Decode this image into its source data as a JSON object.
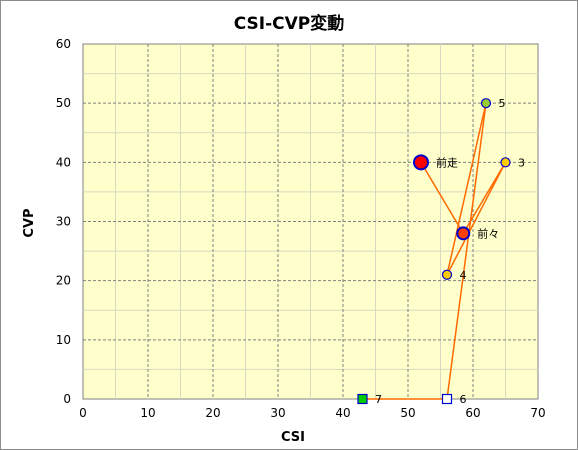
{
  "chart_data": {
    "type": "scatter",
    "title": "CSI-CVP変動",
    "xlabel": "CSI",
    "ylabel": "CVP",
    "xlim": [
      0,
      70
    ],
    "ylim": [
      0,
      60
    ],
    "x_ticks": [
      0,
      10,
      20,
      30,
      40,
      50,
      60,
      70
    ],
    "y_ticks": [
      0,
      10,
      20,
      30,
      40,
      50,
      60
    ],
    "grid": true,
    "colors": {
      "plot_background": "#ffffcc",
      "line": "#ff6a00",
      "grid": "#808080"
    },
    "points": [
      {
        "label": "前走",
        "x": 52,
        "y": 40,
        "shape": "circle-large",
        "fill": "#ff0000",
        "stroke": "#0000cc"
      },
      {
        "label": "前々",
        "x": 58.5,
        "y": 28,
        "shape": "circle-medium",
        "fill": "#ff4000",
        "stroke": "#0000cc"
      },
      {
        "label": "3",
        "x": 65,
        "y": 40,
        "shape": "circle",
        "fill": "#ffcc00",
        "stroke": "#0000cc"
      },
      {
        "label": "4",
        "x": 56,
        "y": 21,
        "shape": "circle",
        "fill": "#ffcc00",
        "stroke": "#0000cc"
      },
      {
        "label": "5",
        "x": 62,
        "y": 50,
        "shape": "circle",
        "fill": "#99cc33",
        "stroke": "#0000cc"
      },
      {
        "label": "6",
        "x": 56,
        "y": 0,
        "shape": "square",
        "fill": "#ffffff",
        "stroke": "#0000cc"
      },
      {
        "label": "7",
        "x": 43,
        "y": 0,
        "shape": "square",
        "fill": "#00cc00",
        "stroke": "#0000cc"
      }
    ],
    "connections": [
      [
        0,
        1
      ],
      [
        1,
        2
      ],
      [
        2,
        3
      ],
      [
        3,
        4
      ],
      [
        4,
        5
      ],
      [
        5,
        6
      ]
    ]
  }
}
